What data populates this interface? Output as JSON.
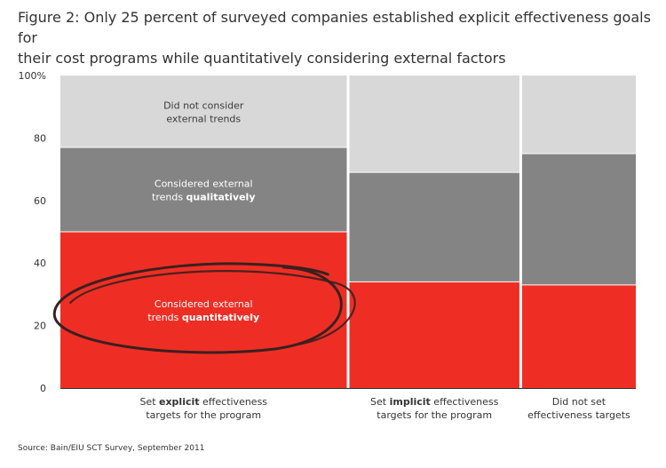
{
  "title_line1": "Figure 2: Only 25 percent of surveyed companies established explicit effectiveness goals for",
  "title_line2": "their cost programs while quantitatively considering external factors",
  "source": "Source: Bain/EIU SCT Survey, September 2011",
  "colors": {
    "quantitative": "#ee2e24",
    "qualitative": "#848484",
    "not_considered": "#d8d8d8",
    "axis": "#333333",
    "circle": "#3a2020"
  },
  "chart_data": {
    "type": "bar",
    "subtype": "mekko",
    "title": "Figure 2: Only 25 percent of surveyed companies established explicit effectiveness goals for their cost programs while quantitatively considering external factors",
    "ylim": [
      0,
      100
    ],
    "yticks": [
      {
        "value": 0,
        "label": "0"
      },
      {
        "value": 20,
        "label": "20"
      },
      {
        "value": 40,
        "label": "40"
      },
      {
        "value": 60,
        "label": "60"
      },
      {
        "value": 80,
        "label": "80"
      },
      {
        "value": 100,
        "label": "100%"
      }
    ],
    "categories": [
      {
        "name": "explicit",
        "label_pre": "Set ",
        "label_bold": "explicit",
        "label_post": " effectiveness",
        "label_line2": "targets for the program",
        "width_share": 50
      },
      {
        "name": "implicit",
        "label_pre": "Set ",
        "label_bold": "implicit",
        "label_post": " effectiveness",
        "label_line2": "targets for the program",
        "width_share": 30
      },
      {
        "name": "none",
        "label_pre": "",
        "label_bold": "",
        "label_post": "Did not set",
        "label_line2": "effectiveness targets",
        "width_share": 20
      }
    ],
    "series": [
      {
        "name": "quantitative",
        "label_line1": "Considered external",
        "label_line2_pre": "trends ",
        "label_line2_bold": "quantitatively",
        "values": [
          50,
          34,
          33
        ]
      },
      {
        "name": "qualitative",
        "label_line1": "Considered external",
        "label_line2_pre": "trends ",
        "label_line2_bold": "qualitatively",
        "values": [
          27,
          35,
          42
        ]
      },
      {
        "name": "not_considered",
        "label_line1": "Did not consider",
        "label_line2_pre": "external trends",
        "label_line2_bold": "",
        "values": [
          23,
          31,
          25
        ]
      }
    ],
    "annotation": "hand-drawn circle around the explicit / quantitatively segment"
  }
}
